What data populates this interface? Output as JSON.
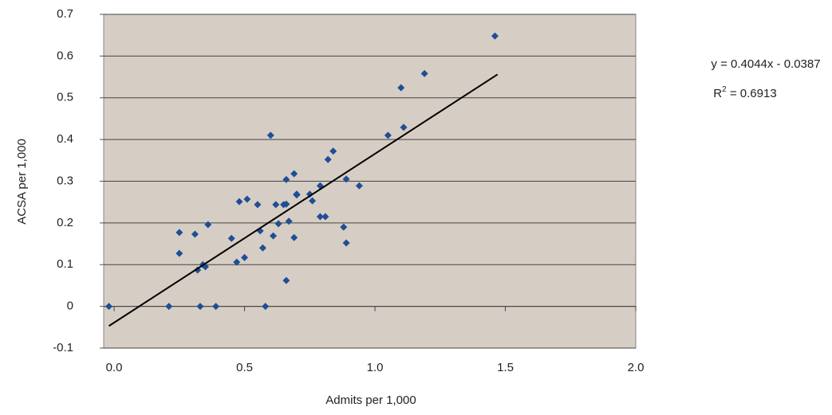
{
  "chart_data": {
    "type": "scatter",
    "x_label": "Admits per 1,000",
    "y_label": "ACSA per 1,000",
    "x": [
      -0.02,
      0.21,
      0.33,
      0.39,
      0.58,
      0.25,
      0.25,
      0.31,
      0.32,
      0.34,
      0.35,
      0.36,
      0.45,
      0.47,
      0.48,
      0.5,
      0.51,
      0.55,
      0.56,
      0.57,
      0.6,
      0.61,
      0.62,
      0.63,
      0.65,
      0.66,
      0.66,
      0.66,
      0.67,
      0.69,
      0.69,
      0.7,
      0.7,
      0.75,
      0.76,
      0.79,
      0.79,
      0.81,
      0.82,
      0.84,
      0.88,
      0.89,
      0.89,
      0.94,
      1.05,
      1.1,
      1.11,
      1.19,
      1.46
    ],
    "values": [
      0,
      0,
      0,
      0,
      0,
      0.177,
      0.127,
      0.173,
      0.087,
      0.1,
      0.095,
      0.196,
      0.163,
      0.106,
      0.251,
      0.117,
      0.257,
      0.244,
      0.181,
      0.14,
      0.41,
      0.169,
      0.244,
      0.198,
      0.244,
      0.304,
      0.062,
      0.245,
      0.204,
      0.318,
      0.165,
      0.267,
      0.269,
      0.269,
      0.253,
      0.289,
      0.215,
      0.215,
      0.352,
      0.372,
      0.19,
      0.305,
      0.152,
      0.289,
      0.41,
      0.524,
      0.429,
      0.558,
      0.648
    ],
    "color": "#1f4e96",
    "trendline": {
      "x": [
        -0.02,
        1.47
      ],
      "y": [
        -0.047,
        0.556
      ],
      "color": "#000000"
    },
    "equation": "y = 0.4044x - 0.0387",
    "r_squared": {
      "base": "R",
      "sup": "2",
      "rest": " = 0.6913"
    },
    "xlim": [
      -0.04,
      2.0
    ],
    "xticks": [
      {
        "value": 0,
        "label": "0.0"
      },
      0.5,
      {
        "value": 1,
        "label": "1.0"
      },
      1.5,
      {
        "value": 2,
        "label": "2.0"
      }
    ],
    "ylim": [
      -0.1,
      0.7
    ],
    "yticks": [
      -0.1,
      0,
      0.1,
      0.2,
      0.3,
      0.4,
      0.5,
      0.6,
      0.7
    ],
    "grid": true,
    "background": "#d6cdc4"
  }
}
